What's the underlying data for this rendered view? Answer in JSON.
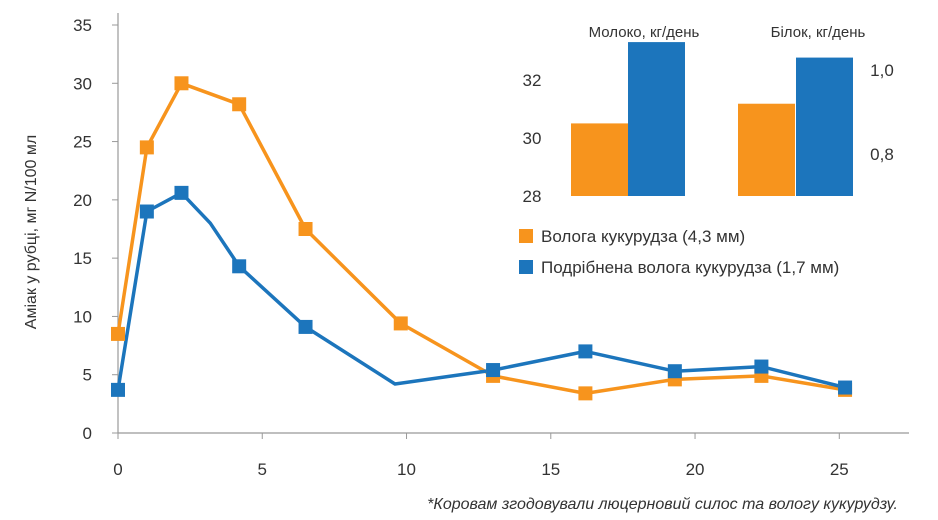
{
  "chart_data": [
    {
      "type": "line",
      "ylabel": "Аміак у рубці, мг N/100 мл",
      "xlabel": "",
      "xlim": [
        0,
        27
      ],
      "ylim": [
        0,
        35
      ],
      "x_ticks": [
        0,
        5,
        10,
        15,
        20,
        25
      ],
      "y_ticks": [
        0,
        5,
        10,
        15,
        20,
        25,
        30,
        35
      ],
      "grid": false,
      "legend_position": "right, below inset",
      "series": [
        {
          "name": "Волога кукурудза (4,3 мм)",
          "color": "#F7941D",
          "points": [
            [
              0,
              8.5
            ],
            [
              1,
              24.5
            ],
            [
              2.2,
              30
            ],
            [
              4.2,
              28.2
            ],
            [
              6.5,
              17.5
            ],
            [
              9.8,
              9.4
            ],
            [
              13,
              4.9
            ],
            [
              16.2,
              3.4
            ],
            [
              19.3,
              4.6
            ],
            [
              22.3,
              4.9
            ],
            [
              25.2,
              3.7
            ]
          ],
          "markers": [
            true,
            true,
            true,
            true,
            true,
            true,
            true,
            true,
            true,
            true,
            true
          ]
        },
        {
          "name": "Подрібнена волога кукурудза (1,7 мм)",
          "color": "#1C75BC",
          "points": [
            [
              0,
              3.7
            ],
            [
              1,
              19
            ],
            [
              2.2,
              20.6
            ],
            [
              3.2,
              18
            ],
            [
              4.2,
              14.3
            ],
            [
              6.5,
              9.1
            ],
            [
              9.6,
              4.2
            ],
            [
              13,
              5.4
            ],
            [
              16.2,
              7
            ],
            [
              19.3,
              5.3
            ],
            [
              22.3,
              5.7
            ],
            [
              25.2,
              3.9
            ]
          ],
          "markers": [
            true,
            true,
            true,
            false,
            true,
            true,
            false,
            true,
            true,
            true,
            true,
            true
          ]
        }
      ]
    },
    {
      "type": "bar",
      "title": "Молоко, кг/день",
      "ylim": [
        28,
        33.2
      ],
      "y_ticks": [
        28,
        30,
        32
      ],
      "series": [
        {
          "name": "Волога кукурудза (4,3 мм)",
          "color": "#F7941D",
          "values": [
            30.5
          ]
        },
        {
          "name": "Подрібнена волога кукурудза (1,7 мм)",
          "color": "#1C75BC",
          "values": [
            33.3
          ]
        }
      ]
    },
    {
      "type": "bar",
      "title": "Білок, кг/день",
      "ylim": [
        0.7,
        1.06
      ],
      "y_ticks": [
        "1,0",
        "0,8"
      ],
      "y_tick_values": [
        1.0,
        0.8
      ],
      "series": [
        {
          "name": "Волога кукурудза (4,3 мм)",
          "color": "#F7941D",
          "values": [
            0.92
          ]
        },
        {
          "name": "Подрібнена волога кукурудза (1,7 мм)",
          "color": "#1C75BC",
          "values": [
            1.03
          ]
        }
      ]
    }
  ],
  "footnote": "*Коровам згодовували люцерновий силос та вологу кукурудзу."
}
